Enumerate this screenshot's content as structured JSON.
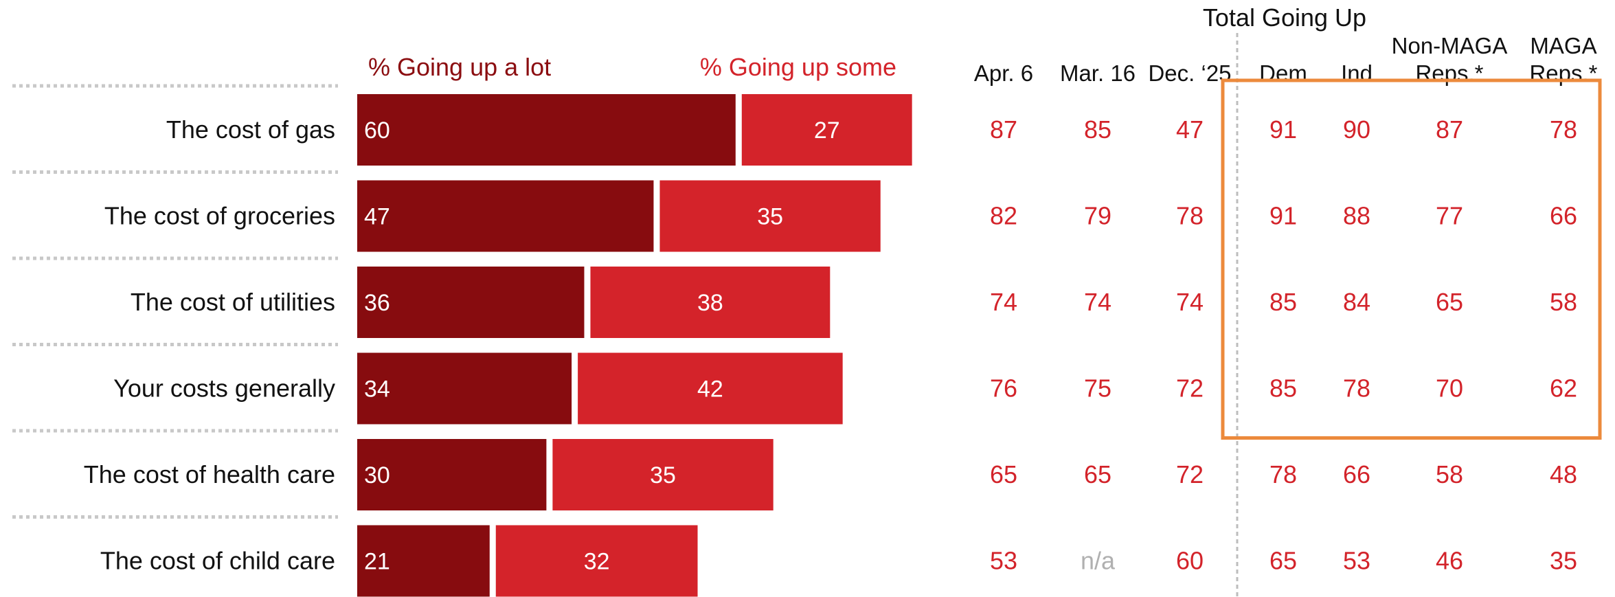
{
  "colors": {
    "lot": "#870c0f",
    "some": "#d4232a",
    "value_text": "#d3232a",
    "na_text": "#b3b3b3",
    "highlight_box": "#ec8a3c",
    "row_separator": "#c8c8c8",
    "group_divider": "#bdbdbd"
  },
  "chart_data": {
    "type": "bar",
    "stacked": true,
    "orientation": "horizontal",
    "categories": [
      "The cost of gas",
      "The cost of groceries",
      "The cost of utilities",
      "Your costs generally",
      "The cost of health care",
      "The cost of child care"
    ],
    "series": [
      {
        "name": "% Going up a lot",
        "values": [
          60,
          47,
          36,
          34,
          30,
          21
        ]
      },
      {
        "name": "% Going up some",
        "values": [
          27,
          35,
          38,
          42,
          35,
          32
        ]
      }
    ],
    "xlim": [
      0,
      100
    ],
    "table": {
      "group_title": "Total Going Up",
      "columns": [
        {
          "lines": [
            "Apr. 6"
          ],
          "values": [
            "87",
            "82",
            "74",
            "76",
            "65",
            "53"
          ]
        },
        {
          "lines": [
            "Mar. 16"
          ],
          "values": [
            "85",
            "79",
            "74",
            "75",
            "65",
            "n/a"
          ]
        },
        {
          "lines": [
            "Dec. ‘25"
          ],
          "values": [
            "47",
            "78",
            "74",
            "72",
            "72",
            "60"
          ]
        },
        {
          "lines": [
            "Dem"
          ],
          "values": [
            "91",
            "91",
            "85",
            "85",
            "78",
            "65"
          ]
        },
        {
          "lines": [
            "Ind"
          ],
          "values": [
            "90",
            "88",
            "84",
            "78",
            "66",
            "53"
          ]
        },
        {
          "lines": [
            "Non-MAGA",
            "Reps.*"
          ],
          "values": [
            "87",
            "77",
            "65",
            "70",
            "58",
            "46"
          ]
        },
        {
          "lines": [
            "MAGA",
            "Reps.*"
          ],
          "values": [
            "78",
            "66",
            "58",
            "62",
            "48",
            "35"
          ]
        }
      ],
      "highlight": {
        "columns": [
          3,
          6
        ],
        "rows": [
          0,
          3
        ]
      }
    }
  }
}
